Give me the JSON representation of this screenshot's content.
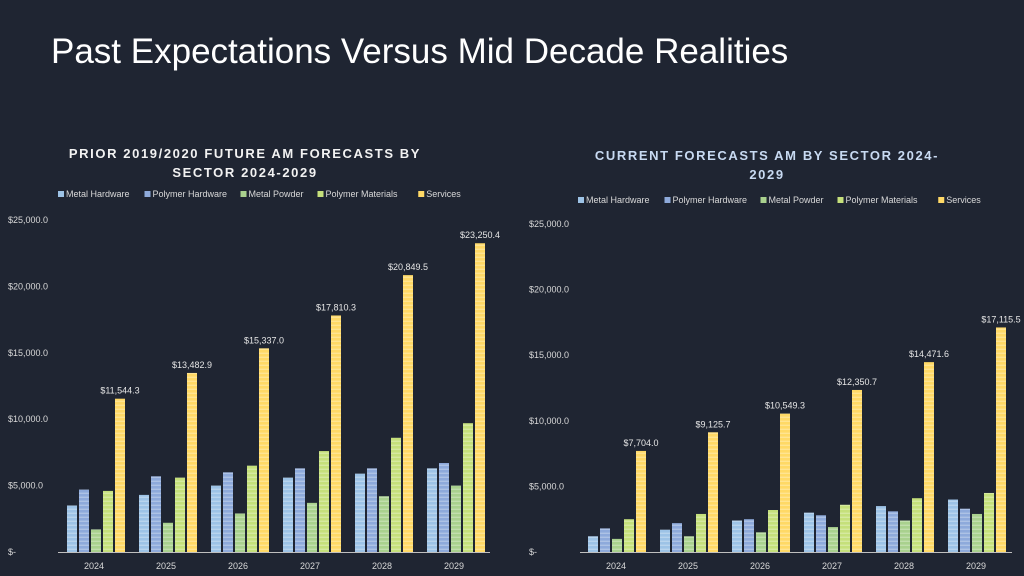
{
  "slide": {
    "title": "Past Expectations Versus Mid Decade Realities"
  },
  "chart_data": [
    {
      "type": "bar",
      "title": "PRIOR 2019/2020 FUTURE AM FORECASTS BY SECTOR 2024-2029",
      "title_lines": [
        "PRIOR 2019/2020 FUTURE AM FORECASTS BY",
        "SECTOR 2024-2029"
      ],
      "categories": [
        "2024",
        "2025",
        "2026",
        "2027",
        "2028",
        "2029"
      ],
      "ylim": [
        0,
        25000
      ],
      "ytick_labels": [
        "$-",
        "$5,000.0",
        "$10,000.0",
        "$15,000.0",
        "$20,000.0",
        "$25,000.0"
      ],
      "series": [
        {
          "name": "Metal Hardware",
          "color": "#9dc3e6",
          "values": [
            3500,
            4300,
            5000,
            5600,
            5900,
            6300
          ]
        },
        {
          "name": "Polymer Hardware",
          "color": "#8eaadb",
          "values": [
            4700,
            5700,
            6000,
            6300,
            6300,
            6700
          ]
        },
        {
          "name": "Metal Powder",
          "color": "#a9d18e",
          "values": [
            1700,
            2200,
            2900,
            3700,
            4200,
            5000
          ]
        },
        {
          "name": "Polymer Materials",
          "color": "#c5e07b",
          "values": [
            4600,
            5600,
            6500,
            7600,
            8600,
            9700
          ]
        },
        {
          "name": "Services",
          "color": "#ffd966",
          "values": [
            11544.3,
            13482.9,
            15337.0,
            17810.3,
            20849.5,
            23250.4
          ]
        }
      ],
      "data_labels": [
        "$11,544.3",
        "$13,482.9",
        "$15,337.0",
        "$17,810.3",
        "$20,849.5",
        "$23,250.4"
      ]
    },
    {
      "type": "bar",
      "title": "CURRENT FORECASTS AM BY SECTOR 2024-2029",
      "title_lines": [
        "CURRENT FORECASTS AM BY SECTOR 2024-",
        "2029"
      ],
      "categories": [
        "2024",
        "2025",
        "2026",
        "2027",
        "2028",
        "2029"
      ],
      "ylim": [
        0,
        25000
      ],
      "ytick_labels": [
        "$-",
        "$5,000.0",
        "$10,000.0",
        "$15,000.0",
        "$20,000.0",
        "$25,000.0"
      ],
      "series": [
        {
          "name": "Metal Hardware",
          "color": "#9dc3e6",
          "values": [
            1200,
            1700,
            2400,
            3000,
            3500,
            4000
          ]
        },
        {
          "name": "Polymer Hardware",
          "color": "#8eaadb",
          "values": [
            1800,
            2200,
            2500,
            2800,
            3100,
            3300
          ]
        },
        {
          "name": "Metal Powder",
          "color": "#a9d18e",
          "values": [
            1000,
            1200,
            1500,
            1900,
            2400,
            2900
          ]
        },
        {
          "name": "Polymer Materials",
          "color": "#c5e07b",
          "values": [
            2500,
            2900,
            3200,
            3600,
            4100,
            4500
          ]
        },
        {
          "name": "Services",
          "color": "#ffd966",
          "values": [
            7704.0,
            9125.7,
            10549.3,
            12350.7,
            14471.6,
            17115.5
          ]
        }
      ],
      "data_labels": [
        "$7,704.0",
        "$9,125.7",
        "$10,549.3",
        "$12,350.7",
        "$14,471.6",
        "$17,115.5"
      ]
    }
  ]
}
